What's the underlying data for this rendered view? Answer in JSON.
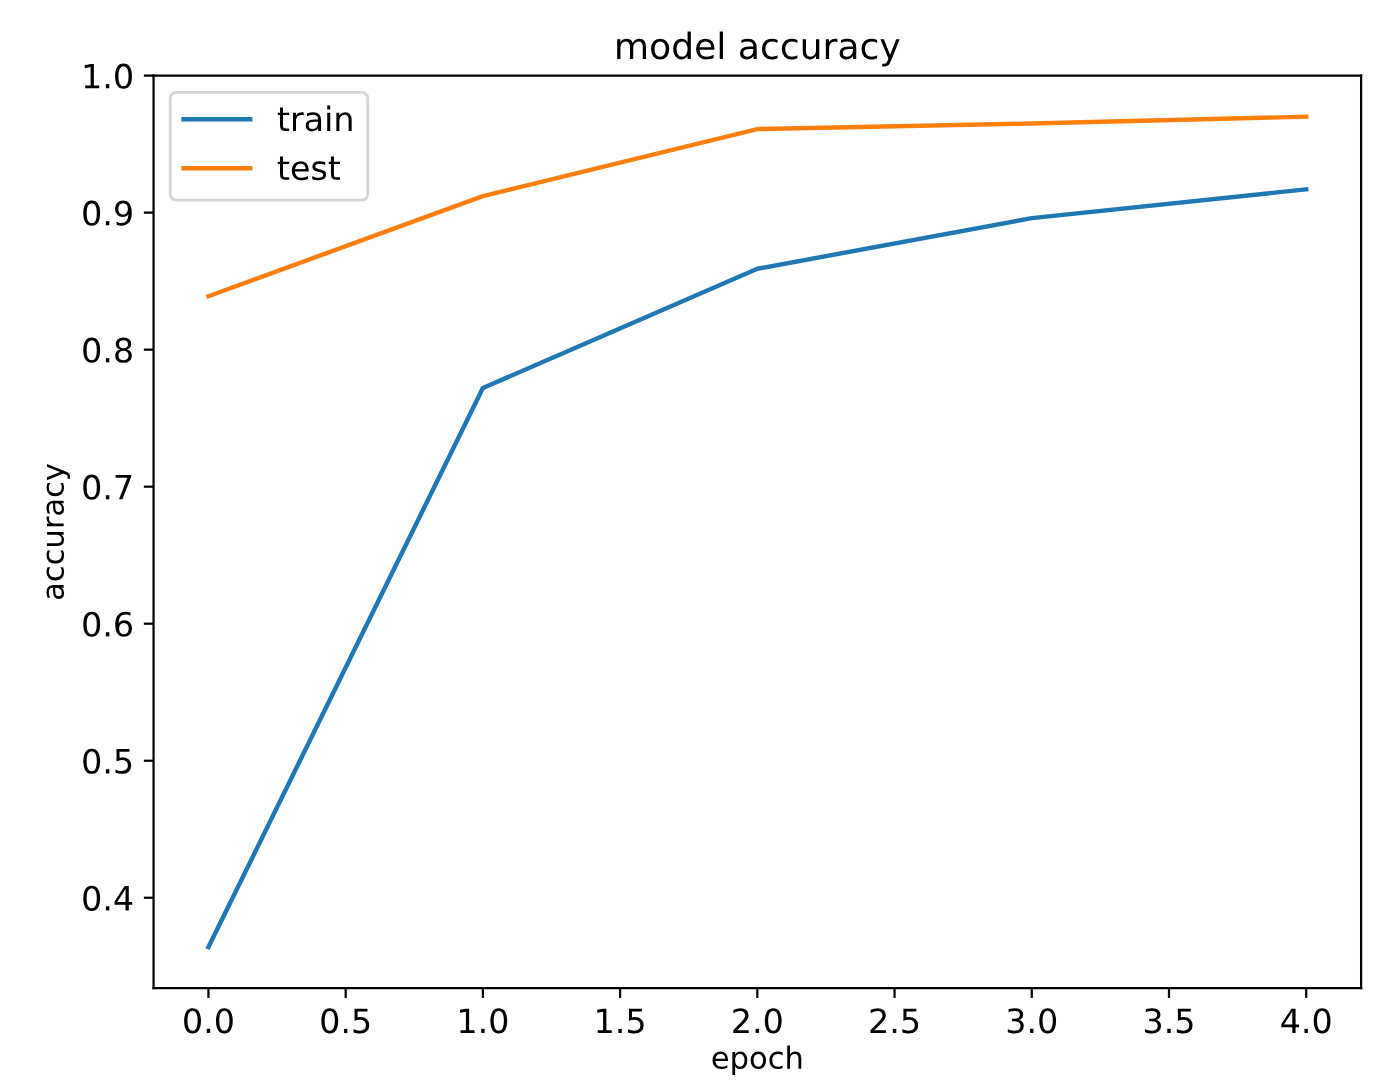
{
  "chart_data": {
    "type": "line",
    "title": "model accuracy",
    "xlabel": "epoch",
    "ylabel": "accuracy",
    "x": [
      0,
      1,
      2,
      3,
      4
    ],
    "series": [
      {
        "name": "train",
        "color": "#1f77b4",
        "values": [
          0.364,
          0.772,
          0.859,
          0.896,
          0.917
        ]
      },
      {
        "name": "test",
        "color": "#ff7f0e",
        "values": [
          0.839,
          0.912,
          0.961,
          0.965,
          0.97
        ]
      }
    ],
    "xlim": [
      -0.2,
      4.2
    ],
    "xticks": [
      {
        "value": 0,
        "label": "0.0"
      },
      0.5,
      {
        "value": 1,
        "label": "1.0"
      },
      1.5,
      {
        "value": 2,
        "label": "2.0"
      },
      2.5,
      {
        "value": 3,
        "label": "3.0"
      },
      3.5,
      {
        "value": 4,
        "label": "4.0"
      }
    ],
    "ylim": [
      0.334,
      1.0
    ],
    "yticks": [
      0.4,
      0.5,
      0.6,
      0.7,
      0.8,
      0.9,
      {
        "value": 1,
        "label": "1.0"
      }
    ],
    "legend": "top left",
    "grid": false,
    "marker": "none",
    "line_style": "solid"
  }
}
